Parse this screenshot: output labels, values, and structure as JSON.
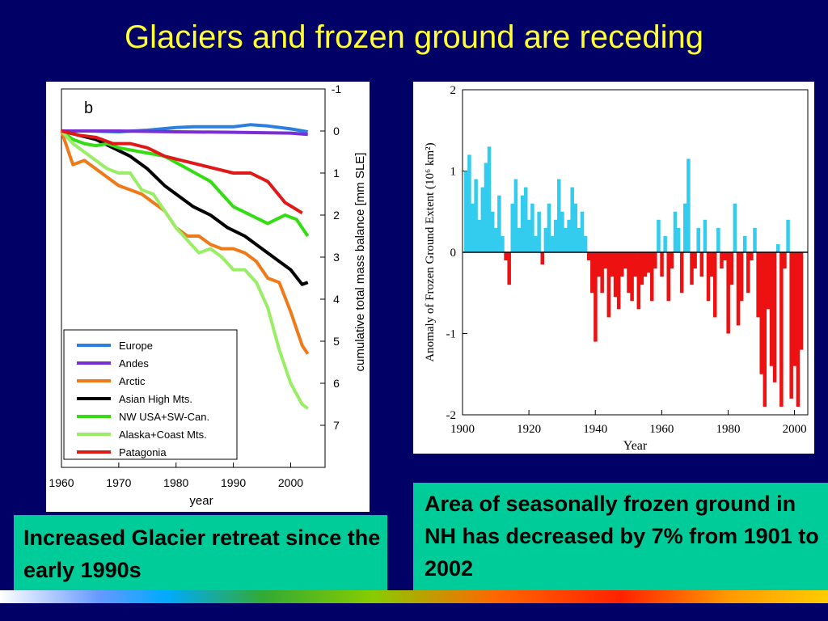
{
  "title": "Glaciers and frozen ground are receding",
  "captions": {
    "left": "Increased Glacier retreat since the early 1990s",
    "right": "Area of seasonally frozen ground in NH has decreased by 7% from 1901 to 2002"
  },
  "chart_data": [
    {
      "type": "line",
      "panel_label": "b",
      "xlabel": "year",
      "ylabel": "cumulative total mass balance [mm SLE]",
      "xlim": [
        1960,
        2006
      ],
      "ylim": [
        -1,
        8
      ],
      "y_inverted": true,
      "y_axis_side": "right",
      "x_ticks": [
        1960,
        1970,
        1980,
        1990,
        2000
      ],
      "y_ticks": [
        -1,
        0,
        1,
        2,
        3,
        4,
        5,
        6,
        7
      ],
      "legend_position": "bottom-left",
      "series": [
        {
          "name": "Europe",
          "color": "#2a7fe0",
          "x": [
            1960,
            1965,
            1970,
            1975,
            1980,
            1983,
            1986,
            1990,
            1993,
            1996,
            2000,
            2003
          ],
          "values": [
            0,
            0,
            0.02,
            -0.02,
            -0.08,
            -0.1,
            -0.1,
            -0.1,
            -0.15,
            -0.12,
            -0.05,
            0.02
          ]
        },
        {
          "name": "Andes",
          "color": "#7a2fd6",
          "x": [
            1960,
            1970,
            1980,
            1990,
            2000,
            2003
          ],
          "values": [
            0,
            0,
            0.02,
            0.03,
            0.05,
            0.08
          ]
        },
        {
          "name": "Arctic",
          "color": "#ee7a1a",
          "x": [
            1960,
            1962,
            1964,
            1966,
            1968,
            1970,
            1972,
            1974,
            1976,
            1978,
            1980,
            1982,
            1984,
            1986,
            1988,
            1990,
            1992,
            1994,
            1996,
            1998,
            2000,
            2002,
            2003
          ],
          "values": [
            0,
            0.8,
            0.7,
            0.9,
            1.1,
            1.3,
            1.4,
            1.5,
            1.7,
            1.9,
            2.3,
            2.5,
            2.5,
            2.7,
            2.8,
            2.8,
            2.9,
            3.1,
            3.5,
            3.6,
            4.3,
            5.1,
            5.3
          ]
        },
        {
          "name": "Asian High Mts.",
          "color": "#000000",
          "x": [
            1960,
            1963,
            1966,
            1969,
            1972,
            1975,
            1978,
            1980,
            1983,
            1986,
            1989,
            1992,
            1995,
            1998,
            2000,
            2002,
            2003
          ],
          "values": [
            0,
            0.1,
            0.2,
            0.4,
            0.6,
            0.9,
            1.3,
            1.5,
            1.8,
            2.0,
            2.3,
            2.5,
            2.8,
            3.1,
            3.3,
            3.65,
            3.6
          ]
        },
        {
          "name": "NW USA+SW-Can.",
          "color": "#33dd11",
          "x": [
            1960,
            1962,
            1964,
            1966,
            1968,
            1970,
            1974,
            1978,
            1982,
            1986,
            1990,
            1993,
            1996,
            1999,
            2001,
            2003
          ],
          "values": [
            0,
            0.2,
            0.3,
            0.35,
            0.3,
            0.4,
            0.5,
            0.6,
            0.9,
            1.2,
            1.8,
            2.0,
            2.2,
            2.0,
            2.1,
            2.5
          ]
        },
        {
          "name": "Alaska+Coast Mts.",
          "color": "#99ee66",
          "x": [
            1960,
            1962,
            1964,
            1966,
            1968,
            1970,
            1972,
            1974,
            1976,
            1978,
            1980,
            1982,
            1984,
            1986,
            1988,
            1990,
            1992,
            1994,
            1996,
            1998,
            2000,
            2002,
            2003
          ],
          "values": [
            0,
            0.3,
            0.5,
            0.7,
            0.9,
            1.0,
            1.0,
            1.4,
            1.5,
            1.9,
            2.3,
            2.6,
            2.9,
            2.8,
            3.0,
            3.3,
            3.3,
            3.6,
            4.2,
            5.2,
            6.0,
            6.5,
            6.6
          ]
        },
        {
          "name": "Patagonia",
          "color": "#e01818",
          "x": [
            1960,
            1963,
            1966,
            1969,
            1972,
            1975,
            1978,
            1981,
            1984,
            1987,
            1990,
            1993,
            1996,
            1999,
            2002
          ],
          "values": [
            0,
            0.1,
            0.15,
            0.3,
            0.3,
            0.4,
            0.6,
            0.7,
            0.8,
            0.9,
            1.0,
            1.0,
            1.2,
            1.7,
            1.95
          ]
        }
      ]
    },
    {
      "type": "area",
      "xlabel": "Year",
      "ylabel": "Anomaly of Frozen Ground Extent (10⁶ km²)",
      "xlim": [
        1900,
        2004
      ],
      "ylim": [
        -2,
        2
      ],
      "x_ticks": [
        1900,
        1920,
        1940,
        1960,
        1980,
        2000
      ],
      "y_ticks": [
        2,
        1,
        0,
        -1,
        -2
      ],
      "positive_color": "#33ccee",
      "negative_color": "#ee1111",
      "x": [
        1901,
        1902,
        1903,
        1904,
        1905,
        1906,
        1907,
        1908,
        1909,
        1910,
        1911,
        1912,
        1913,
        1914,
        1915,
        1916,
        1917,
        1918,
        1919,
        1920,
        1921,
        1922,
        1923,
        1924,
        1925,
        1926,
        1927,
        1928,
        1929,
        1930,
        1931,
        1932,
        1933,
        1934,
        1935,
        1936,
        1937,
        1938,
        1939,
        1940,
        1941,
        1942,
        1943,
        1944,
        1945,
        1946,
        1947,
        1948,
        1949,
        1950,
        1951,
        1952,
        1953,
        1954,
        1955,
        1956,
        1957,
        1958,
        1959,
        1960,
        1961,
        1962,
        1963,
        1964,
        1965,
        1966,
        1967,
        1968,
        1969,
        1970,
        1971,
        1972,
        1973,
        1974,
        1975,
        1976,
        1977,
        1978,
        1979,
        1980,
        1981,
        1982,
        1983,
        1984,
        1985,
        1986,
        1987,
        1988,
        1989,
        1990,
        1991,
        1992,
        1993,
        1994,
        1995,
        1996,
        1997,
        1998,
        1999,
        2000,
        2001,
        2002
      ],
      "values": [
        1.0,
        1.2,
        0.6,
        0.9,
        0.4,
        0.8,
        1.1,
        1.3,
        0.5,
        0.3,
        0.7,
        0.2,
        -0.1,
        -0.4,
        0.6,
        0.9,
        0.3,
        0.7,
        0.8,
        0.4,
        0.6,
        0.2,
        0.5,
        -0.15,
        0.3,
        0.6,
        0.2,
        0.4,
        0.9,
        0.5,
        0.3,
        0.4,
        0.8,
        0.6,
        0.3,
        0.5,
        0.2,
        -0.1,
        -0.5,
        -1.1,
        -0.3,
        -0.5,
        -0.2,
        -0.8,
        -0.3,
        -0.55,
        -0.7,
        -0.3,
        -0.2,
        -0.5,
        -0.6,
        -0.3,
        -0.7,
        -0.4,
        -0.3,
        -0.25,
        -0.6,
        -0.2,
        0.4,
        -0.3,
        0.2,
        -0.6,
        -0.2,
        0.5,
        0.3,
        -0.5,
        0.6,
        1.15,
        -0.4,
        -0.2,
        0.3,
        -0.3,
        0.4,
        -0.6,
        -0.3,
        -0.8,
        0.3,
        -0.2,
        -0.1,
        -1.0,
        -0.4,
        0.6,
        -0.9,
        -0.6,
        0.2,
        -0.5,
        -0.1,
        0.3,
        -0.8,
        -1.5,
        -1.9,
        -0.7,
        -1.4,
        -1.6,
        0.1,
        -1.9,
        -0.2,
        0.4,
        -1.8,
        -1.4,
        -1.9,
        -1.2
      ]
    }
  ]
}
